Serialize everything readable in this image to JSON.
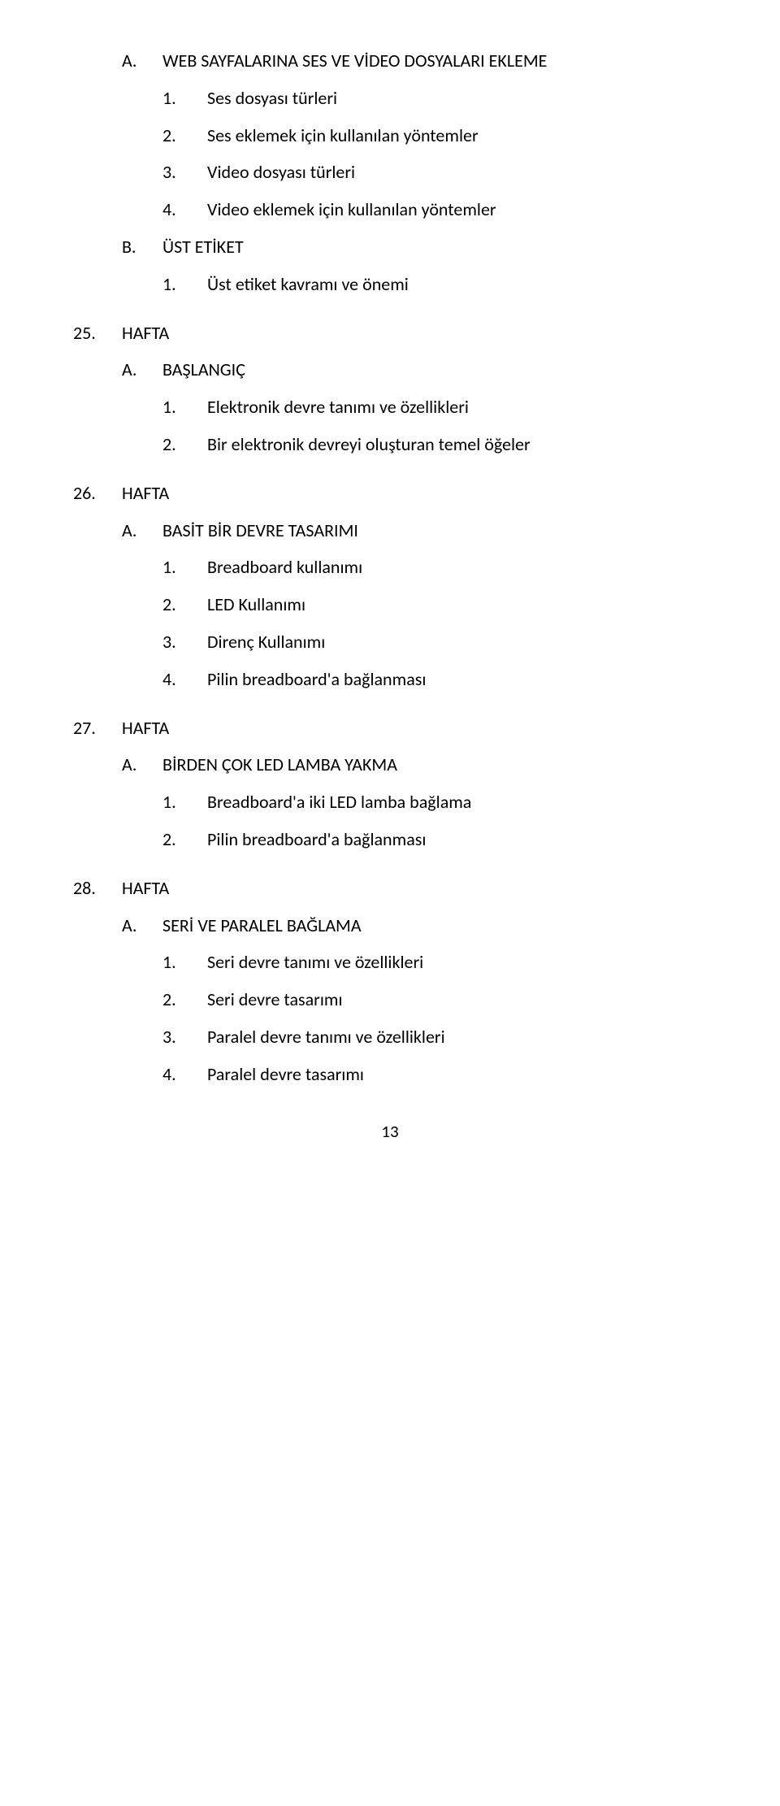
{
  "section_a": {
    "letter": "A.",
    "title": "WEB SAYFALARINA SES VE VİDEO DOSYALARI EKLEME",
    "items": [
      {
        "num": "1.",
        "text": "Ses dosyası türleri"
      },
      {
        "num": "2.",
        "text": "Ses eklemek için kullanılan yöntemler"
      },
      {
        "num": "3.",
        "text": "Video dosyası türleri"
      },
      {
        "num": "4.",
        "text": "Video eklemek için kullanılan yöntemler"
      }
    ]
  },
  "section_b": {
    "letter": "B.",
    "title": "ÜST ETİKET",
    "items": [
      {
        "num": "1.",
        "text": "Üst etiket kavramı ve önemi"
      }
    ]
  },
  "week25": {
    "num": "25.",
    "label": "HAFTA",
    "section": {
      "letter": "A.",
      "title": "BAŞLANGIÇ"
    },
    "items": [
      {
        "num": "1.",
        "text": "Elektronik devre tanımı ve özellikleri"
      },
      {
        "num": "2.",
        "text": "Bir elektronik devreyi oluşturan temel öğeler"
      }
    ]
  },
  "week26": {
    "num": "26.",
    "label": "HAFTA",
    "section": {
      "letter": "A.",
      "title": "BASİT BİR DEVRE TASARIMI"
    },
    "items": [
      {
        "num": "1.",
        "text": "Breadboard kullanımı"
      },
      {
        "num": "2.",
        "text": "LED Kullanımı"
      },
      {
        "num": "3.",
        "text": "Direnç Kullanımı"
      },
      {
        "num": "4.",
        "text": "Pilin breadboard'a bağlanması"
      }
    ]
  },
  "week27": {
    "num": "27.",
    "label": "HAFTA",
    "section": {
      "letter": "A.",
      "title": "BİRDEN ÇOK LED LAMBA YAKMA"
    },
    "items": [
      {
        "num": "1.",
        "text": "Breadboard'a iki LED lamba bağlama"
      },
      {
        "num": "2.",
        "text": "Pilin breadboard'a bağlanması"
      }
    ]
  },
  "week28": {
    "num": "28.",
    "label": "HAFTA",
    "section": {
      "letter": "A.",
      "title": "SERİ VE PARALEL BAĞLAMA"
    },
    "items": [
      {
        "num": "1.",
        "text": "Seri devre tanımı ve özellikleri"
      },
      {
        "num": "2.",
        "text": "Seri devre tasarımı"
      },
      {
        "num": "3.",
        "text": "Paralel devre tanımı ve özellikleri"
      },
      {
        "num": "4.",
        "text": "Paralel devre tasarımı"
      }
    ]
  },
  "page_number": "13"
}
